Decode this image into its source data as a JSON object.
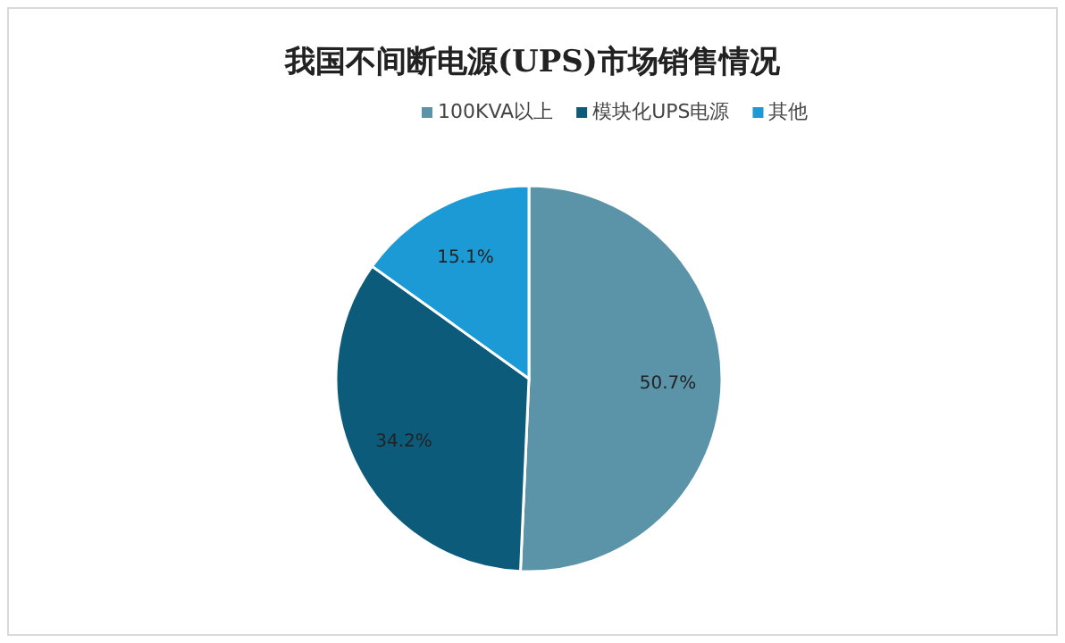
{
  "chart_data": {
    "type": "pie",
    "title": "我国不间断电源(UPS)市场销售情况",
    "categories": [
      "100KVA以上",
      "模块化UPS电源",
      "其他"
    ],
    "values": [
      50.7,
      34.2,
      15.1
    ],
    "colors": [
      "#5b93a9",
      "#0d5b7b",
      "#1b9ad6"
    ],
    "value_labels": [
      "50.7%",
      "34.2%",
      "15.1%"
    ],
    "legend": "top"
  }
}
